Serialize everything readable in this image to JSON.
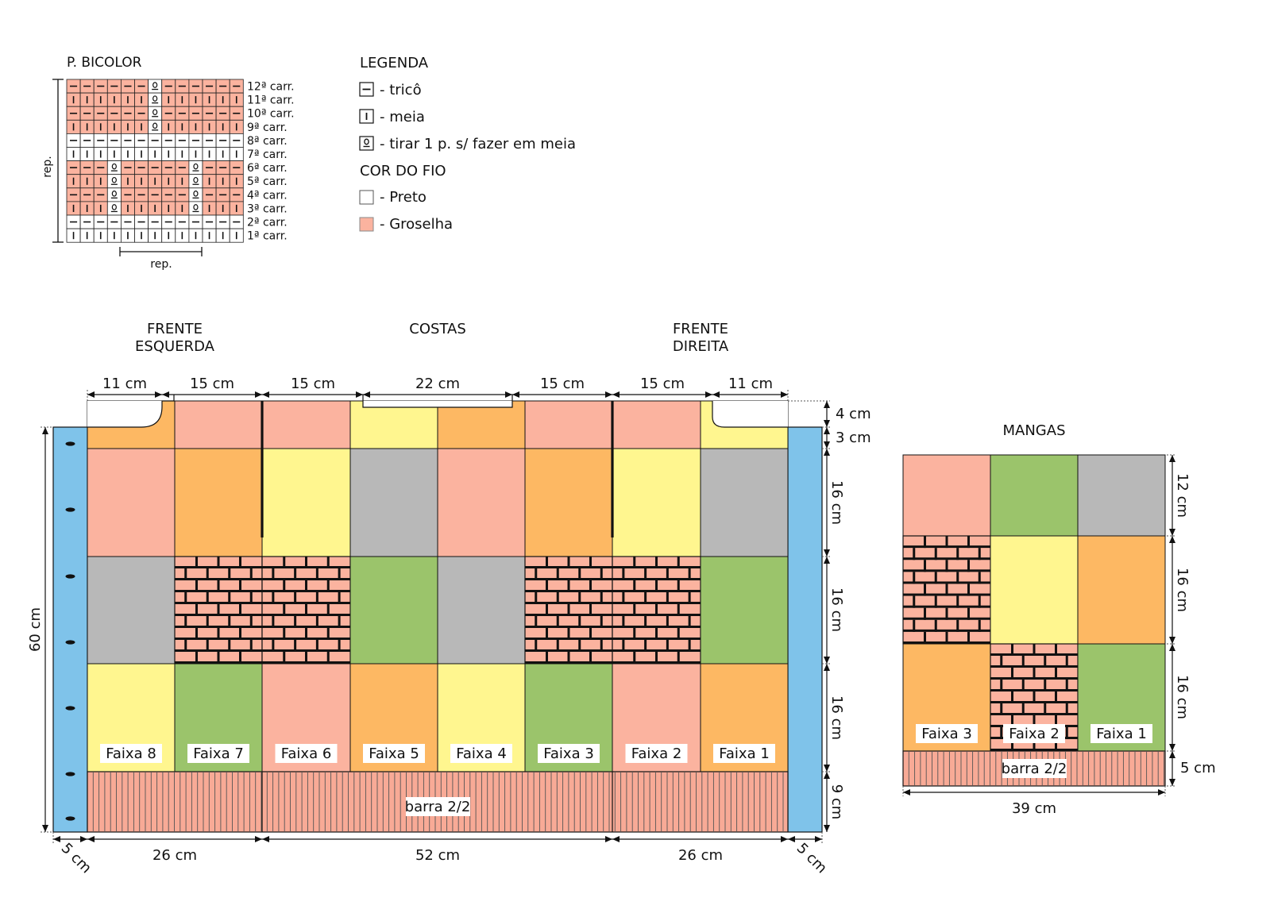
{
  "colors": {
    "salmon": "#fbb39f",
    "orange": "#fdb863",
    "yellow": "#fff68f",
    "gray": "#b8b8b8",
    "green": "#9bc46b",
    "blue": "#7fc3ea",
    "ribbing": "#f8aa96",
    "white": "#ffffff"
  },
  "stitch_chart": {
    "title": "P. BICOLOR",
    "rows": [
      "12ª carr.",
      "11ª carr.",
      "10ª carr.",
      "9ª carr.",
      "8ª carr.",
      "7ª carr.",
      "6ª carr.",
      "5ª carr.",
      "4ª carr.",
      "3ª carr.",
      "2ª carr.",
      "1ª carr."
    ],
    "rep_vertical": "rep.",
    "rep_horizontal": "rep."
  },
  "legend": {
    "title": "LEGENDA",
    "items": [
      {
        "icon": "purl-dash-icon",
        "label": "- tricô"
      },
      {
        "icon": "knit-bar-icon",
        "label": "- meia"
      },
      {
        "icon": "slip-stitch-icon",
        "label": "- tirar 1 p. s/ fazer em meia"
      }
    ],
    "color_title": "COR DO FIO",
    "colors": [
      {
        "swatch": "#ffffff",
        "label": "- Preto"
      },
      {
        "swatch": "#fbb39f",
        "label": "- Groselha"
      }
    ]
  },
  "body": {
    "section_labels": {
      "left_front": [
        "FRENTE",
        "ESQUERDA"
      ],
      "back": "COSTAS",
      "right_front": [
        "FRENTE",
        "DIREITA"
      ]
    },
    "top_widths": [
      "11 cm",
      "15 cm",
      "15 cm",
      "22 cm",
      "15 cm",
      "15 cm",
      "11 cm"
    ],
    "right_heights": [
      "4 cm",
      "3 cm",
      "16 cm",
      "16 cm",
      "16 cm",
      "9 cm"
    ],
    "left_height": "60 cm",
    "bottom_widths": [
      "26 cm",
      "52 cm",
      "26 cm"
    ],
    "band_width_left": "5 cm",
    "band_width_right": "5 cm",
    "yoke_colors": [
      "orange",
      "salmon",
      "salmon",
      "yellow",
      "orange",
      "salmon",
      "salmon",
      "yellow"
    ],
    "block_rows": [
      [
        "salmon",
        "orange",
        "yellow",
        "gray",
        "salmon",
        "orange",
        "yellow",
        "gray"
      ],
      [
        "gray",
        "brick",
        "brick",
        "green",
        "gray",
        "brick",
        "brick",
        "green"
      ],
      [
        "yellow",
        "green",
        "salmon",
        "orange",
        "yellow",
        "green",
        "salmon",
        "orange"
      ]
    ],
    "strip_labels": [
      "Faixa 8",
      "Faixa 7",
      "Faixa 6",
      "Faixa 5",
      "Faixa 4",
      "Faixa 3",
      "Faixa 2",
      "Faixa 1"
    ],
    "ribbing_label": "barra 2/2"
  },
  "sleeves": {
    "title": "MANGAS",
    "block_rows": [
      [
        "salmon",
        "green",
        "gray"
      ],
      [
        "brick",
        "yellow",
        "orange"
      ],
      [
        "orange",
        "brick",
        "green"
      ]
    ],
    "strip_labels": [
      "Faixa 3",
      "Faixa 2",
      "Faixa 1"
    ],
    "heights": [
      "12 cm",
      "16 cm",
      "16 cm",
      "5 cm"
    ],
    "width": "39 cm",
    "ribbing_label": "barra 2/2"
  }
}
